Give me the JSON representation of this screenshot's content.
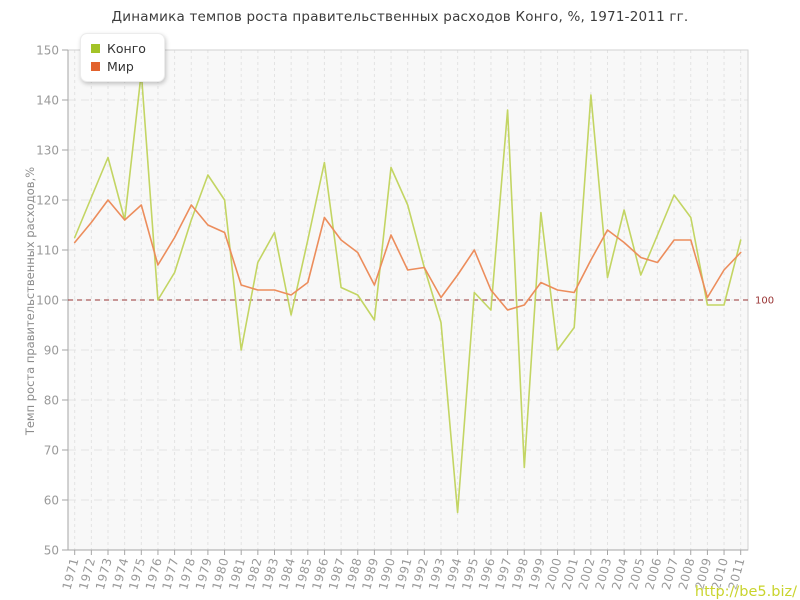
{
  "title": "Динамика темпов роста правительственных расходов Конго, %, 1971-2011 гг.",
  "y_axis": {
    "label": "Темп роста правительственных расходов,%",
    "ticks": [
      150,
      140,
      130,
      120,
      110,
      100,
      90,
      80,
      70,
      60,
      50
    ]
  },
  "reference_line": {
    "value": 100,
    "label": "100",
    "color": "#993333"
  },
  "legend": [
    {
      "label": "Конго",
      "color": "#a3c327"
    },
    {
      "label": "Мир",
      "color": "#e2622d"
    }
  ],
  "watermark": "http://be5.biz/",
  "colors": {
    "congo_line": "#c3d563",
    "world_line": "#ec8d5c",
    "reference": "#993333",
    "axis_text": "#9a9a9a",
    "grid": "#e3e3e3",
    "plot_bg": "#f8f8f8",
    "plot_border": "#d2d2d2",
    "axis_line": "#a6a6a6",
    "watermark": "#c9d42d"
  },
  "chart_data": {
    "type": "line",
    "x": [
      1971,
      1972,
      1973,
      1974,
      1975,
      1976,
      1977,
      1978,
      1979,
      1980,
      1981,
      1982,
      1983,
      1984,
      1985,
      1986,
      1987,
      1988,
      1989,
      1990,
      1991,
      1992,
      1993,
      1994,
      1995,
      1996,
      1997,
      1998,
      1999,
      2000,
      2001,
      2002,
      2003,
      2004,
      2005,
      2006,
      2007,
      2008,
      2009,
      2010,
      2011
    ],
    "series": [
      {
        "name": "Конго",
        "color": "#c3d563",
        "values": [
          112.5,
          120.5,
          128.5,
          116,
          145.5,
          100,
          105.5,
          116,
          125,
          120,
          90,
          107.5,
          113.5,
          97,
          112,
          127.5,
          102.5,
          101,
          96,
          126.5,
          119,
          106.5,
          95.5,
          57.5,
          101.5,
          98,
          138,
          66.5,
          117.5,
          90,
          94.5,
          141,
          104.5,
          118,
          105,
          113,
          121,
          116.5,
          99,
          99,
          112
        ]
      },
      {
        "name": "Мир",
        "color": "#ec8d5c",
        "values": [
          111.5,
          115.5,
          120,
          116,
          119,
          107,
          112.5,
          119,
          115,
          113.5,
          103,
          102,
          102,
          101,
          103.5,
          116.5,
          112,
          109.5,
          103,
          113,
          106,
          106.5,
          100.5,
          105,
          110,
          102,
          98,
          99,
          103.5,
          102,
          101.5,
          108,
          114,
          111.5,
          108.5,
          107.5,
          112,
          112,
          100.5,
          106,
          109.5
        ]
      }
    ],
    "title": "Динамика темпов роста правительственных расходов Конго, %, 1971-2011 гг.",
    "xlabel": "",
    "ylabel": "Темп роста правительственных расходов,%",
    "ylim": [
      50,
      150
    ],
    "grid": true,
    "legend_position": "top-left",
    "reference_value": 100
  }
}
